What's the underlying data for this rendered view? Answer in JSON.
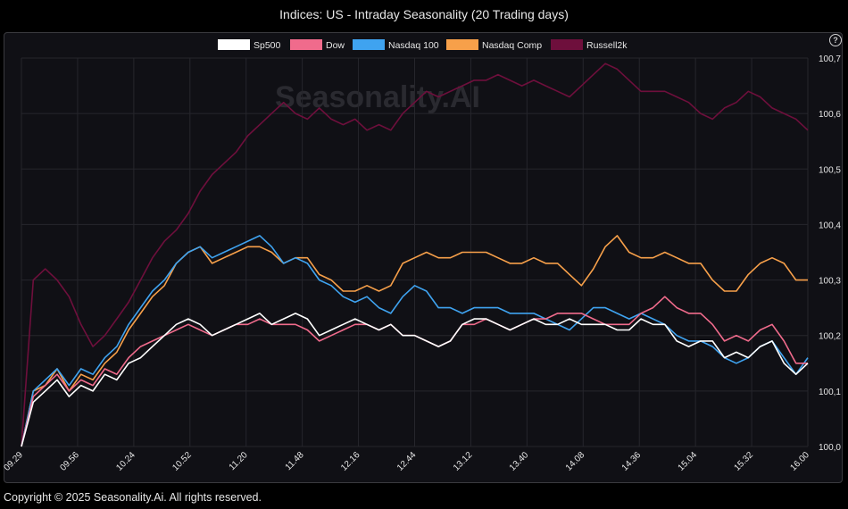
{
  "title": "Indices: US - Intraday Seasonality (20 Trading days)",
  "footer": "Copyright © 2025 Seasonality.Ai. All rights reserved.",
  "watermark": "Seasonality.AI",
  "help_icon": "?",
  "chart_data": {
    "type": "line",
    "title": "Indices: US - Intraday Seasonality (20 Trading days)",
    "xlabel": "",
    "ylabel": "",
    "x_ticks": [
      "09.29",
      "09.56",
      "10.24",
      "10.52",
      "11.20",
      "11.48",
      "12.16",
      "12.44",
      "13.12",
      "13.40",
      "14.08",
      "14.36",
      "15.04",
      "15.32",
      "16.00"
    ],
    "y_ticks": [
      "100,0",
      "100,1",
      "100,2",
      "100,3",
      "100,4",
      "100,5",
      "100,6",
      "100,7"
    ],
    "ylim": [
      100.0,
      100.7
    ],
    "grid": true,
    "legend_position": "top",
    "series": [
      {
        "name": "Sp500",
        "color": "#ffffff",
        "values": [
          100.0,
          100.08,
          100.1,
          100.12,
          100.09,
          100.11,
          100.1,
          100.13,
          100.12,
          100.15,
          100.16,
          100.18,
          100.2,
          100.22,
          100.23,
          100.22,
          100.2,
          100.21,
          100.22,
          100.23,
          100.24,
          100.22,
          100.23,
          100.24,
          100.23,
          100.2,
          100.21,
          100.22,
          100.23,
          100.22,
          100.21,
          100.22,
          100.2,
          100.2,
          100.19,
          100.18,
          100.19,
          100.22,
          100.23,
          100.23,
          100.22,
          100.21,
          100.22,
          100.23,
          100.22,
          100.22,
          100.23,
          100.22,
          100.22,
          100.22,
          100.21,
          100.21,
          100.23,
          100.22,
          100.22,
          100.19,
          100.18,
          100.19,
          100.19,
          100.16,
          100.17,
          100.16,
          100.18,
          100.19,
          100.15,
          100.13,
          100.15
        ]
      },
      {
        "name": "Dow",
        "color": "#f06b8c",
        "values": [
          100.0,
          100.09,
          100.11,
          100.13,
          100.1,
          100.12,
          100.11,
          100.14,
          100.13,
          100.16,
          100.18,
          100.19,
          100.2,
          100.21,
          100.22,
          100.21,
          100.2,
          100.21,
          100.22,
          100.22,
          100.23,
          100.22,
          100.22,
          100.22,
          100.21,
          100.19,
          100.2,
          100.21,
          100.22,
          100.22,
          100.21,
          100.22,
          100.2,
          100.2,
          100.19,
          100.18,
          100.19,
          100.22,
          100.22,
          100.23,
          100.22,
          100.21,
          100.22,
          100.23,
          100.23,
          100.24,
          100.24,
          100.24,
          100.23,
          100.22,
          100.22,
          100.22,
          100.24,
          100.25,
          100.27,
          100.25,
          100.24,
          100.24,
          100.22,
          100.19,
          100.2,
          100.19,
          100.21,
          100.22,
          100.19,
          100.15,
          100.15
        ]
      },
      {
        "name": "Nasdaq 100",
        "color": "#3fa3f0",
        "values": [
          100.0,
          100.1,
          100.12,
          100.14,
          100.11,
          100.14,
          100.13,
          100.16,
          100.18,
          100.22,
          100.25,
          100.28,
          100.3,
          100.33,
          100.35,
          100.36,
          100.34,
          100.35,
          100.36,
          100.37,
          100.38,
          100.36,
          100.33,
          100.34,
          100.33,
          100.3,
          100.29,
          100.27,
          100.26,
          100.27,
          100.25,
          100.24,
          100.27,
          100.29,
          100.28,
          100.25,
          100.25,
          100.24,
          100.25,
          100.25,
          100.25,
          100.24,
          100.24,
          100.24,
          100.23,
          100.22,
          100.21,
          100.23,
          100.25,
          100.25,
          100.24,
          100.23,
          100.24,
          100.23,
          100.22,
          100.2,
          100.19,
          100.19,
          100.18,
          100.16,
          100.15,
          100.16,
          100.18,
          100.19,
          100.16,
          100.13,
          100.16
        ]
      },
      {
        "name": "Nasdaq Comp",
        "color": "#f7a04a",
        "values": [
          100.0,
          100.1,
          100.11,
          100.14,
          100.1,
          100.13,
          100.12,
          100.15,
          100.17,
          100.21,
          100.24,
          100.27,
          100.29,
          100.33,
          100.35,
          100.36,
          100.33,
          100.34,
          100.35,
          100.36,
          100.36,
          100.35,
          100.33,
          100.34,
          100.34,
          100.31,
          100.3,
          100.28,
          100.28,
          100.29,
          100.28,
          100.29,
          100.33,
          100.34,
          100.35,
          100.34,
          100.34,
          100.35,
          100.35,
          100.35,
          100.34,
          100.33,
          100.33,
          100.34,
          100.33,
          100.33,
          100.31,
          100.29,
          100.32,
          100.36,
          100.38,
          100.35,
          100.34,
          100.34,
          100.35,
          100.34,
          100.33,
          100.33,
          100.3,
          100.28,
          100.28,
          100.31,
          100.33,
          100.34,
          100.33,
          100.3,
          100.3
        ]
      },
      {
        "name": "Russell2k",
        "color": "#6e0f3c",
        "values": [
          100.0,
          100.3,
          100.32,
          100.3,
          100.27,
          100.22,
          100.18,
          100.2,
          100.23,
          100.26,
          100.3,
          100.34,
          100.37,
          100.39,
          100.42,
          100.46,
          100.49,
          100.51,
          100.53,
          100.56,
          100.58,
          100.6,
          100.62,
          100.6,
          100.59,
          100.61,
          100.59,
          100.58,
          100.59,
          100.57,
          100.58,
          100.57,
          100.6,
          100.62,
          100.64,
          100.63,
          100.64,
          100.65,
          100.66,
          100.66,
          100.67,
          100.66,
          100.65,
          100.66,
          100.65,
          100.64,
          100.63,
          100.65,
          100.67,
          100.69,
          100.68,
          100.66,
          100.64,
          100.64,
          100.64,
          100.63,
          100.62,
          100.6,
          100.59,
          100.61,
          100.62,
          100.64,
          100.63,
          100.61,
          100.6,
          100.59,
          100.57
        ]
      }
    ]
  }
}
